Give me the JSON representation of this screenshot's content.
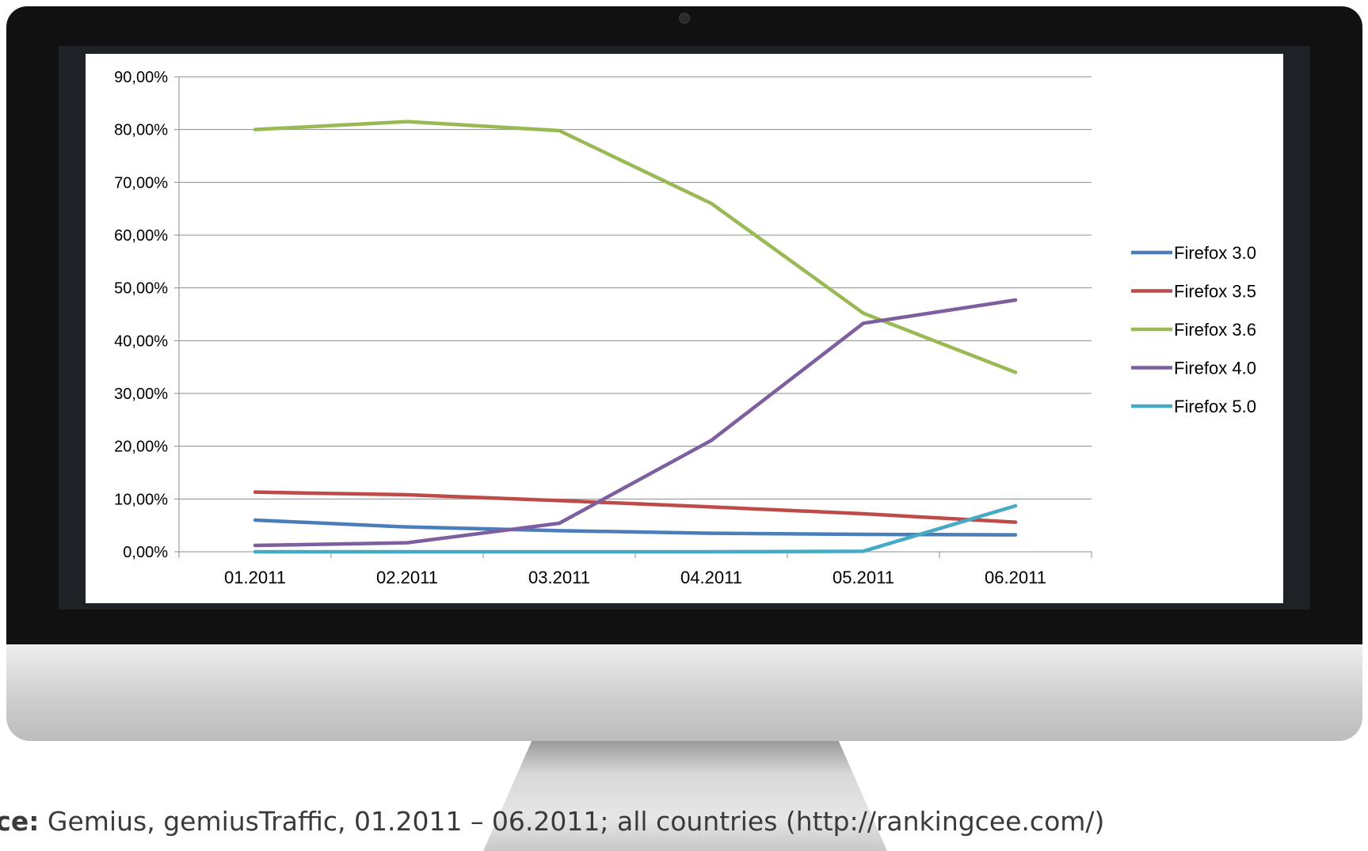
{
  "chart_data": {
    "type": "line",
    "categories": [
      "01.2011",
      "02.2011",
      "03.2011",
      "04.2011",
      "05.2011",
      "06.2011"
    ],
    "yticks": [
      "0,00%",
      "10,00%",
      "20,00%",
      "30,00%",
      "40,00%",
      "50,00%",
      "60,00%",
      "70,00%",
      "80,00%",
      "90,00%"
    ],
    "ylim": [
      0,
      90
    ],
    "grid": true,
    "legend_position": "right",
    "series": [
      {
        "name": "Firefox 3.0",
        "color": "#4a7ebb",
        "values": [
          6.0,
          4.7,
          4.0,
          3.5,
          3.3,
          3.2
        ]
      },
      {
        "name": "Firefox 3.5",
        "color": "#be4b48",
        "values": [
          11.3,
          10.8,
          9.7,
          8.5,
          7.2,
          5.6
        ]
      },
      {
        "name": "Firefox 3.6",
        "color": "#98b954",
        "values": [
          80.0,
          81.5,
          79.8,
          66.0,
          45.2,
          34.0
        ]
      },
      {
        "name": "Firefox 4.0",
        "color": "#7d5fa0",
        "values": [
          1.2,
          1.7,
          5.4,
          21.1,
          43.3,
          47.7
        ]
      },
      {
        "name": "Firefox 5.0",
        "color": "#46aac5",
        "values": [
          0.0,
          0.0,
          0.0,
          0.0,
          0.1,
          8.7
        ]
      }
    ]
  },
  "source": {
    "label": "rce:",
    "text": " Gemius, gemiusTraffic, 01.2011 – 06.2011; all countries (http://rankingcee.com/)"
  }
}
